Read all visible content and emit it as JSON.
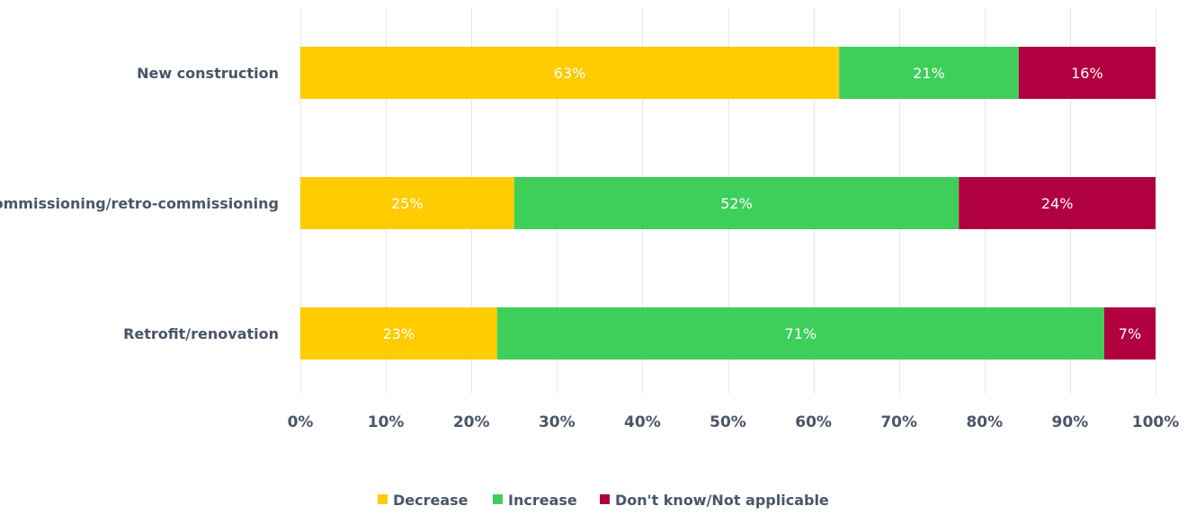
{
  "chart_data": {
    "type": "bar",
    "orientation": "horizontal",
    "stacked": true,
    "title": "",
    "xlabel": "",
    "ylabel": "",
    "categories": [
      "New construction",
      "Commissioning/retro-commissioning",
      "Retrofit/renovation"
    ],
    "series": [
      {
        "name": "Decrease",
        "color": "#ffcc00",
        "values": [
          63,
          25,
          23
        ],
        "labels": [
          "63%",
          "25%",
          "23%"
        ]
      },
      {
        "name": "Increase",
        "color": "#3ecf5a",
        "values": [
          21,
          52,
          71
        ],
        "labels": [
          "21%",
          "52%",
          "71%"
        ]
      },
      {
        "name": "Don't know/Not applicable",
        "color": "#b0003f",
        "values": [
          16,
          24,
          7
        ],
        "labels": [
          "16%",
          "24%",
          "7%"
        ]
      }
    ],
    "xlim": [
      0,
      100
    ],
    "xticks": [
      0,
      10,
      20,
      30,
      40,
      50,
      60,
      70,
      80,
      90,
      100
    ],
    "xtick_labels": [
      "0%",
      "10%",
      "20%",
      "30%",
      "40%",
      "50%",
      "60%",
      "70%",
      "80%",
      "90%",
      "100%"
    ],
    "grid": true,
    "legend": "bottom"
  }
}
